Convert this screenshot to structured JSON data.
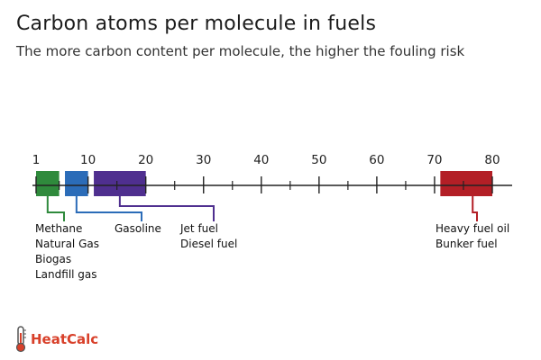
{
  "header": {
    "title": "Carbon atoms per molecule in fuels",
    "subtitle": "The more carbon content per molecule, the higher the fouling risk"
  },
  "logo": {
    "text": "HeatCalc",
    "icon": "thermometer-icon",
    "color": "#d8402a"
  },
  "chart_data": {
    "type": "bar",
    "orientation": "horizontal-range",
    "xlim": [
      1,
      84
    ],
    "ticks": [
      1,
      10,
      20,
      30,
      40,
      50,
      60,
      70,
      80
    ],
    "minor_ticks": [
      5,
      15,
      25,
      35,
      45,
      55,
      65,
      75
    ],
    "grid": false,
    "ranges": [
      {
        "start": 1,
        "end": 5,
        "color": "#2f8a3c",
        "labels": [
          "Methane",
          "Natural Gas",
          "Biogas",
          "Landfill gas"
        ]
      },
      {
        "start": 6,
        "end": 10,
        "color": "#2b6cb8",
        "labels": [
          "Gasoline"
        ]
      },
      {
        "start": 11,
        "end": 20,
        "color": "#4f2f8f",
        "labels": [
          "Jet fuel",
          "Diesel fuel"
        ]
      },
      {
        "start": 71,
        "end": 80,
        "color": "#b31f26",
        "labels": [
          "Heavy fuel oil",
          "Bunker fuel"
        ]
      }
    ]
  }
}
